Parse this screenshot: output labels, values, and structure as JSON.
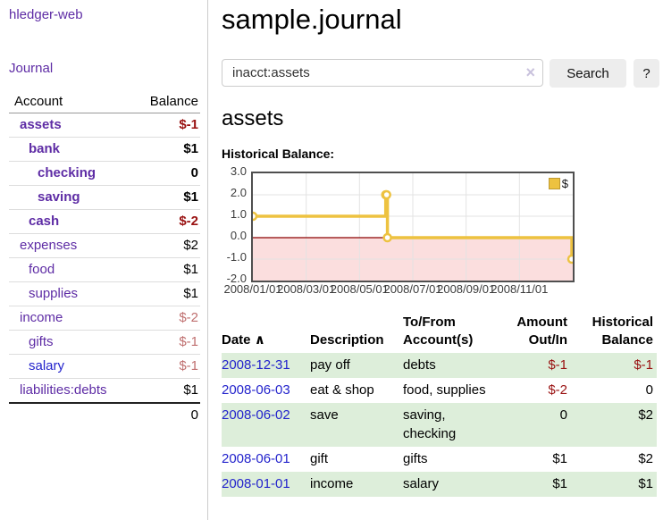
{
  "app": {
    "brand": "hledger-web"
  },
  "sidebar": {
    "journal_label": "Journal",
    "accounts": {
      "header_account": "Account",
      "header_balance": "Balance",
      "rows": [
        {
          "name": "assets",
          "depth": 1,
          "bold": true,
          "balance": "$-1",
          "balance_color": "negative",
          "link_color": "purple"
        },
        {
          "name": "bank",
          "depth": 2,
          "bold": true,
          "balance": "$1",
          "balance_color": "normal",
          "link_color": "purple"
        },
        {
          "name": "checking",
          "depth": 3,
          "bold": true,
          "balance": "0",
          "balance_color": "normal",
          "link_color": "purple"
        },
        {
          "name": "saving",
          "depth": 3,
          "bold": true,
          "balance": "$1",
          "balance_color": "normal",
          "link_color": "purple"
        },
        {
          "name": "cash",
          "depth": 2,
          "bold": true,
          "balance": "$-2",
          "balance_color": "negative",
          "link_color": "purple"
        },
        {
          "name": "expenses",
          "depth": 1,
          "bold": false,
          "balance": "$2",
          "balance_color": "normal",
          "link_color": "purple"
        },
        {
          "name": "food",
          "depth": 2,
          "bold": false,
          "balance": "$1",
          "balance_color": "normal",
          "link_color": "purple"
        },
        {
          "name": "supplies",
          "depth": 2,
          "bold": false,
          "balance": "$1",
          "balance_color": "normal",
          "link_color": "purple"
        },
        {
          "name": "income",
          "depth": 1,
          "bold": false,
          "balance": "$-2",
          "balance_color": "muted",
          "link_color": "purple"
        },
        {
          "name": "gifts",
          "depth": 2,
          "bold": false,
          "balance": "$-1",
          "balance_color": "muted",
          "link_color": "purple"
        },
        {
          "name": "salary",
          "depth": 2,
          "bold": false,
          "balance": "$-1",
          "balance_color": "muted",
          "link_color": "blue"
        },
        {
          "name": "liabilities:debts",
          "depth": 1,
          "bold": false,
          "balance": "$1",
          "balance_color": "normal",
          "link_color": "purple"
        }
      ],
      "total": "0"
    }
  },
  "main": {
    "title": "sample.journal",
    "search": {
      "value": "inacct:assets",
      "clear_icon": "×",
      "button_label": "Search",
      "help_label": "?"
    },
    "account_heading": "assets",
    "chart_label": "Historical Balance:"
  },
  "chart_data": {
    "type": "line",
    "step": true,
    "title": "Historical Balance",
    "series": [
      {
        "name": "$",
        "color": "#edc240",
        "points": [
          [
            "2008-01-01",
            1
          ],
          [
            "2008-06-01",
            2
          ],
          [
            "2008-06-02",
            2
          ],
          [
            "2008-06-03",
            0
          ],
          [
            "2008-12-31",
            -1
          ]
        ]
      }
    ],
    "ylim": [
      -2,
      3
    ],
    "yticks": [
      "3.0",
      "2.0",
      "1.0",
      "0.0",
      "-1.0",
      "-2.0"
    ],
    "ytick_values": [
      3,
      2,
      1,
      0,
      -1,
      -2
    ],
    "xticks": [
      "2008/01/01",
      "2008/03/01",
      "2008/05/01",
      "2008/07/01",
      "2008/09/01",
      "2008/11/01"
    ],
    "x_range": [
      "2008-01-01",
      "2009-01-01"
    ],
    "legend_label": "$",
    "legend_position": "top-right",
    "grid": true,
    "grid_color": "#e3e3e3",
    "zero_line_color": "#8b0000",
    "negative_region_color": "#fbdede",
    "border_color": "#4f4f4f"
  },
  "register": {
    "headers": {
      "date": "Date",
      "sort_icon": "∧",
      "description": "Description",
      "accounts": "To/From Account(s)",
      "amount": "Amount Out/In",
      "balance": "Historical Balance"
    },
    "rows": [
      {
        "date": "2008-12-31",
        "description": "pay off",
        "accounts": "debts",
        "amount": "$-1",
        "amount_color": "negative",
        "balance": "$-1",
        "balance_color": "negative"
      },
      {
        "date": "2008-06-03",
        "description": "eat & shop",
        "accounts": "food, supplies",
        "amount": "$-2",
        "amount_color": "negative",
        "balance": "0",
        "balance_color": "normal"
      },
      {
        "date": "2008-06-02",
        "description": "save",
        "accounts": "saving, checking",
        "amount": "0",
        "amount_color": "normal",
        "balance": "$2",
        "balance_color": "normal"
      },
      {
        "date": "2008-06-01",
        "description": "gift",
        "accounts": "gifts",
        "amount": "$1",
        "amount_color": "normal",
        "balance": "$2",
        "balance_color": "normal"
      },
      {
        "date": "2008-01-01",
        "description": "income",
        "accounts": "salary",
        "amount": "$1",
        "amount_color": "normal",
        "balance": "$1",
        "balance_color": "normal"
      }
    ]
  }
}
